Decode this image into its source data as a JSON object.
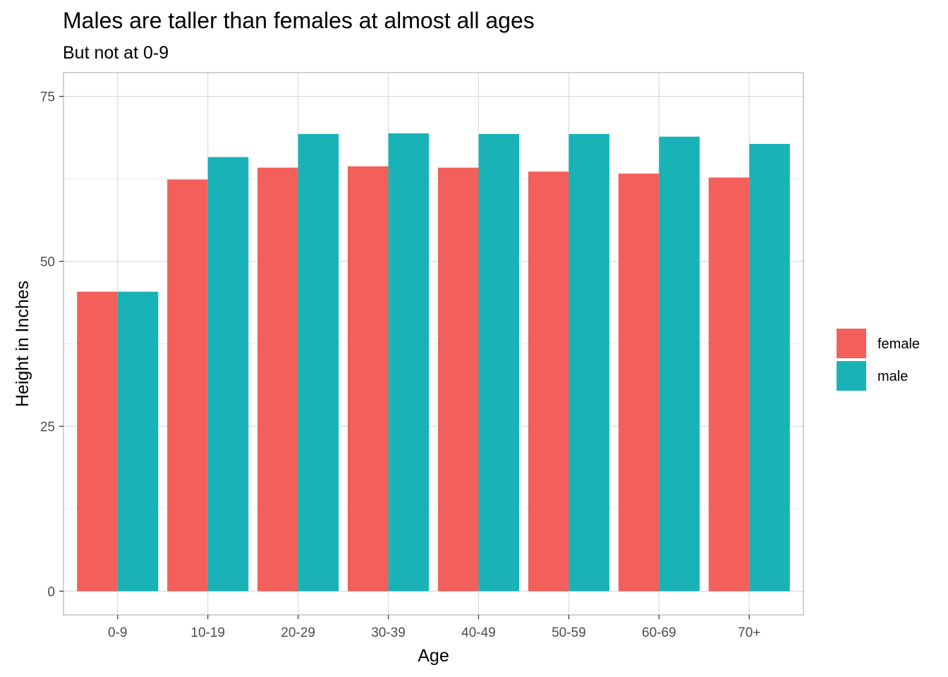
{
  "chart_data": {
    "type": "bar",
    "title": "Males are taller than females at almost all ages",
    "subtitle": "But not at 0-9",
    "xlabel": "Age",
    "ylabel": "Height in Inches",
    "categories": [
      "0-9",
      "10-19",
      "20-29",
      "30-39",
      "40-49",
      "50-59",
      "60-69",
      "70+"
    ],
    "series": [
      {
        "name": "female",
        "color": "#F35F5B",
        "values": [
          45.4,
          62.4,
          64.2,
          64.4,
          64.2,
          63.6,
          63.3,
          62.7
        ]
      },
      {
        "name": "male",
        "color": "#19B3B7",
        "values": [
          45.4,
          65.8,
          69.3,
          69.4,
          69.3,
          69.3,
          68.9,
          67.8
        ]
      }
    ],
    "ylim": [
      -3.6,
      78.6
    ],
    "yticks": [
      0,
      25,
      50,
      75
    ],
    "yticks_minor": [
      12.5,
      37.5,
      62.5
    ],
    "grid": true,
    "legend_position": "right"
  }
}
